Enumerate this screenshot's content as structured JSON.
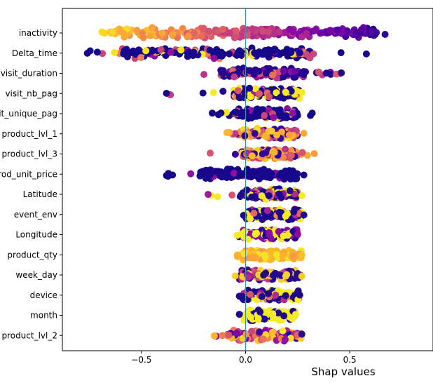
{
  "chart_data": {
    "type": "scatter",
    "subtype": "beeswarm",
    "title": "",
    "xlabel": "Shap values",
    "ylabel": "",
    "xlim": [
      -0.88,
      0.9
    ],
    "xticks": [
      -0.5,
      0.0,
      0.5
    ],
    "xtick_labels": [
      "−0.5",
      "0.0",
      "0.5"
    ],
    "zero_line": 0.0,
    "colormap": "plasma",
    "features": [
      {
        "name": "inactivity",
        "min": -0.69,
        "max": 0.67,
        "core": [
          -0.65,
          0.63
        ],
        "scheme": "gradient"
      },
      {
        "name": "Delta_time",
        "min": -0.76,
        "max": 0.58,
        "core": [
          -0.6,
          0.32
        ],
        "scheme": "navy_mixed"
      },
      {
        "name": "visit_duration",
        "min": -0.2,
        "max": 0.46,
        "core": [
          -0.12,
          0.28
        ],
        "scheme": "navy_purple"
      },
      {
        "name": "visit_nb_pag",
        "min": -0.38,
        "max": 0.27,
        "core": [
          -0.06,
          0.26
        ],
        "scheme": "navy_yellow"
      },
      {
        "name": "visit_unique_pag",
        "min": -0.16,
        "max": 0.32,
        "core": [
          -0.05,
          0.25
        ],
        "scheme": "navy_mixed"
      },
      {
        "name": "product_lvl_1",
        "min": -0.09,
        "max": 0.28,
        "core": [
          -0.01,
          0.25
        ],
        "scheme": "orange_pink"
      },
      {
        "name": "product_lvl_3",
        "min": -0.17,
        "max": 0.33,
        "core": [
          -0.02,
          0.25
        ],
        "scheme": "orange_pink"
      },
      {
        "name": "prod_unit_price",
        "min": -0.38,
        "max": 0.28,
        "core": [
          -0.22,
          0.25
        ],
        "scheme": "navy"
      },
      {
        "name": "Latitude",
        "min": -0.18,
        "max": 0.27,
        "core": [
          -0.03,
          0.25
        ],
        "scheme": "navy_yellow"
      },
      {
        "name": "event_env",
        "min": -0.01,
        "max": 0.28,
        "core": [
          0.0,
          0.27
        ],
        "scheme": "navy_yellow"
      },
      {
        "name": "Longitude",
        "min": -0.04,
        "max": 0.25,
        "core": [
          -0.02,
          0.25
        ],
        "scheme": "yellow_purple"
      },
      {
        "name": "product_qty",
        "min": -0.04,
        "max": 0.27,
        "core": [
          -0.02,
          0.27
        ],
        "scheme": "orange"
      },
      {
        "name": "week_day",
        "min": -0.05,
        "max": 0.27,
        "core": [
          -0.03,
          0.26
        ],
        "scheme": "purple_mixed"
      },
      {
        "name": "device",
        "min": -0.03,
        "max": 0.26,
        "core": [
          -0.02,
          0.26
        ],
        "scheme": "navy_yellow"
      },
      {
        "name": "month",
        "min": -0.03,
        "max": 0.24,
        "core": [
          -0.01,
          0.24
        ],
        "scheme": "yellow_navy"
      },
      {
        "name": "product_lvl_2",
        "min": -0.15,
        "max": 0.27,
        "core": [
          -0.09,
          0.27
        ],
        "scheme": "all_mixed"
      }
    ]
  }
}
